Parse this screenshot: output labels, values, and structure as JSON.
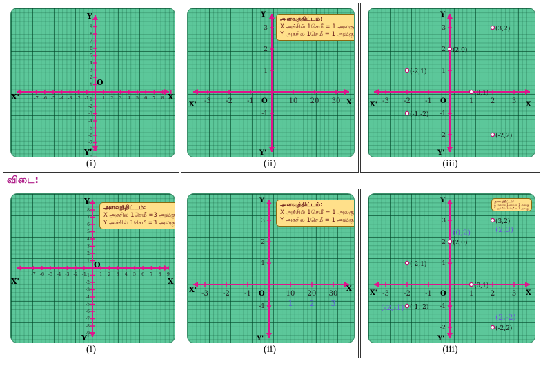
{
  "answer_heading": "விடை:",
  "captions": [
    "(i)",
    "(ii)",
    "(iii)"
  ],
  "axis_labels": {
    "x_pos": "X",
    "x_neg": "X'",
    "y_pos": "Y",
    "y_neg": "Y'",
    "origin": "O"
  },
  "scale": {
    "title": "அளவுத்திட்டம்:",
    "ii_x": "X அச்சில் 1செமீ = 1 அலகு",
    "ii_y": "Y அச்சில் 1செமீ = 1 அலகு",
    "i_x": "X அச்சில் 1செமீ =3 அலகு",
    "i_y": "Y அச்சில் 1செமீ =3 அலகு"
  },
  "panel_i": {
    "x_ticks": [
      "-7",
      "-6",
      "-5",
      "-4",
      "-3",
      "-2",
      "-1",
      "1",
      "2",
      "3",
      "4",
      "5",
      "6",
      "7",
      "8",
      "9"
    ],
    "y_ticks": [
      "9",
      "8",
      "7",
      "6",
      "5",
      "4",
      "3",
      "2",
      "1",
      "-1",
      "-2",
      "-3",
      "-4",
      "-5",
      "-6",
      "-7",
      "-8",
      "-9"
    ]
  },
  "panel_ii": {
    "x_ticks": [
      "-3",
      "-2",
      "-1",
      "10",
      "20",
      "30"
    ],
    "y_ticks": [
      "3",
      "2",
      "1",
      "-1"
    ],
    "answer_marks": [
      "1",
      "2",
      "3"
    ]
  },
  "panel_iii": {
    "x_ticks": [
      "-3",
      "-2",
      "-1",
      "1",
      "2",
      "3"
    ],
    "y_ticks": [
      "3",
      "2",
      "1",
      "-1",
      "-2"
    ],
    "points": [
      {
        "label": "(3,2)",
        "x": 2,
        "y": 3
      },
      {
        "label": "(2,0)",
        "x": 0,
        "y": 2
      },
      {
        "label": "(-2,1)",
        "x": -2,
        "y": 1
      },
      {
        "label": "(0,1)",
        "x": 1,
        "y": 0
      },
      {
        "label": "(-1,-2)",
        "x": -2,
        "y": -1
      },
      {
        "label": "(-2,2)",
        "x": 2,
        "y": -2
      }
    ],
    "corrections": [
      "(0,2)",
      "(2,3)",
      "(-2,-1)",
      "(2,-2)"
    ]
  }
}
